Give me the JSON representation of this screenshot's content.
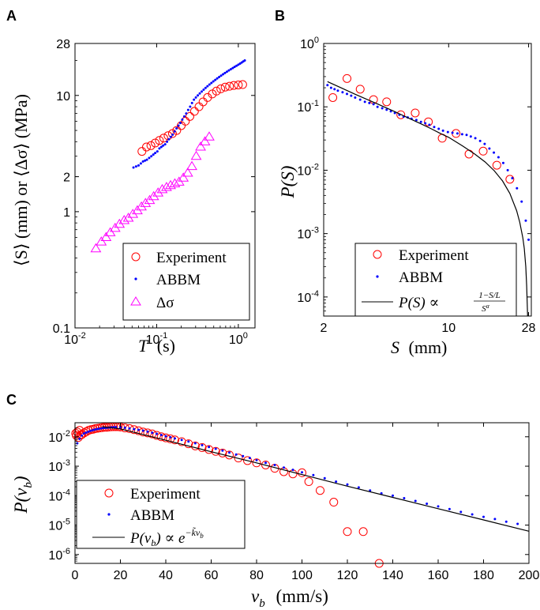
{
  "colors": {
    "experiment": "#ff0000",
    "abbm": "#0000ff",
    "dsigma": "#ff00ff",
    "fit": "#000000",
    "axis": "#000000"
  },
  "chart_data": [
    {
      "panel": "A",
      "type": "scatter",
      "xscale": "log",
      "yscale": "log",
      "xlim": [
        0.01,
        1.6
      ],
      "ylim": [
        0.1,
        28
      ],
      "xticks": [
        {
          "value": 0.01,
          "base": "10",
          "exp": "-2"
        },
        {
          "value": 0.1,
          "base": "10",
          "exp": "-1"
        },
        {
          "value": 1,
          "base": "10",
          "exp": "0"
        }
      ],
      "yticks": [
        {
          "value": 0.1,
          "label": "0.1"
        },
        {
          "value": 1,
          "label": "1"
        },
        {
          "value": 2,
          "label": "2"
        },
        {
          "value": 10,
          "label": "10"
        },
        {
          "value": 28,
          "label": "28"
        }
      ],
      "xlabel": "T (s)",
      "ylabel": "⟨S⟩ (mm) or ⟨Δσ⟩ (MPa)",
      "legend_position": "bottom-right",
      "series": [
        {
          "name": "Experiment",
          "marker": "circle",
          "x": [
            0.066,
            0.075,
            0.085,
            0.096,
            0.108,
            0.122,
            0.138,
            0.156,
            0.176,
            0.2,
            0.225,
            0.255,
            0.29,
            0.33,
            0.37,
            0.42,
            0.48,
            0.54,
            0.61,
            0.69,
            0.78,
            0.88,
            1.0,
            1.13
          ],
          "y": [
            3.3,
            3.6,
            3.7,
            3.9,
            4.1,
            4.3,
            4.5,
            4.7,
            5.0,
            5.5,
            6.0,
            6.6,
            7.3,
            8.0,
            8.8,
            9.6,
            10.3,
            10.9,
            11.4,
            11.8,
            12.0,
            12.2,
            12.3,
            12.4
          ]
        },
        {
          "name": "ABBM",
          "marker": "dot",
          "x": [
            0.052,
            0.056,
            0.06,
            0.064,
            0.068,
            0.072,
            0.076,
            0.081,
            0.086,
            0.091,
            0.096,
            0.102,
            0.108,
            0.114,
            0.12,
            0.127,
            0.134,
            0.141,
            0.149,
            0.157,
            0.166,
            0.175,
            0.185,
            0.195,
            0.206,
            0.218,
            0.23,
            0.243,
            0.257,
            0.271,
            0.286,
            0.302,
            0.319,
            0.337,
            0.356,
            0.376,
            0.397,
            0.419,
            0.443,
            0.468,
            0.494,
            0.522,
            0.551,
            0.582,
            0.615,
            0.65,
            0.686,
            0.725,
            0.766,
            0.809,
            0.855,
            0.9,
            0.95,
            1.0,
            1.05,
            1.1,
            1.15,
            1.2
          ],
          "y": [
            2.4,
            2.45,
            2.5,
            2.6,
            2.7,
            2.75,
            2.8,
            2.9,
            3.0,
            3.1,
            3.2,
            3.3,
            3.5,
            3.6,
            3.7,
            3.8,
            4.0,
            4.2,
            4.4,
            4.6,
            4.9,
            5.2,
            5.5,
            5.8,
            6.2,
            6.6,
            7.0,
            7.5,
            8.0,
            8.6,
            9.2,
            9.6,
            10.0,
            10.4,
            10.8,
            11.2,
            11.6,
            12.0,
            12.4,
            12.8,
            13.2,
            13.6,
            14.0,
            14.4,
            14.8,
            15.2,
            15.6,
            16.0,
            16.4,
            16.8,
            17.2,
            17.6,
            18.0,
            18.4,
            18.8,
            19.2,
            19.6,
            20.0
          ]
        },
        {
          "name": "Δσ",
          "marker": "triangle",
          "x": [
            0.018,
            0.021,
            0.024,
            0.027,
            0.031,
            0.035,
            0.04,
            0.045,
            0.051,
            0.058,
            0.065,
            0.073,
            0.082,
            0.092,
            0.104,
            0.117,
            0.132,
            0.148,
            0.167,
            0.188,
            0.212,
            0.24,
            0.27,
            0.305,
            0.345,
            0.39,
            0.44
          ],
          "y": [
            0.48,
            0.55,
            0.6,
            0.66,
            0.72,
            0.78,
            0.84,
            0.88,
            0.95,
            1.02,
            1.1,
            1.18,
            1.25,
            1.35,
            1.45,
            1.55,
            1.62,
            1.68,
            1.74,
            1.8,
            1.95,
            2.15,
            2.45,
            3.0,
            3.6,
            4.0,
            4.4
          ]
        }
      ]
    },
    {
      "panel": "B",
      "type": "scatter",
      "xscale": "log",
      "yscale": "log",
      "xlim": [
        2,
        29
      ],
      "ylim": [
        5e-05,
        1
      ],
      "xticks": [
        {
          "value": 2,
          "label": "2"
        },
        {
          "value": 10,
          "label": "10"
        },
        {
          "value": 28,
          "label": "28"
        }
      ],
      "yticks": [
        {
          "value": 0.0001,
          "base": "10",
          "exp": "-4"
        },
        {
          "value": 0.001,
          "base": "10",
          "exp": "-3"
        },
        {
          "value": 0.01,
          "base": "10",
          "exp": "-2"
        },
        {
          "value": 0.1,
          "base": "10",
          "exp": "-1"
        },
        {
          "value": 1,
          "base": "10",
          "exp": "0"
        }
      ],
      "xlabel": "S (mm)",
      "ylabel": "P(S)",
      "legend_position": "bottom-left",
      "series": [
        {
          "name": "Experiment",
          "marker": "circle",
          "x": [
            2.25,
            2.7,
            3.2,
            3.8,
            4.5,
            5.4,
            6.5,
            7.7,
            9.2,
            11.0,
            13.0,
            15.6,
            18.6,
            22.0
          ],
          "y": [
            0.14,
            0.28,
            0.19,
            0.13,
            0.12,
            0.075,
            0.08,
            0.058,
            0.032,
            0.038,
            0.018,
            0.02,
            0.012,
            0.0072
          ]
        },
        {
          "name": "ABBM",
          "marker": "dot",
          "x": [
            2.1,
            2.2,
            2.3,
            2.4,
            2.55,
            2.7,
            2.85,
            3.0,
            3.2,
            3.4,
            3.6,
            3.8,
            4.0,
            4.25,
            4.5,
            4.75,
            5.0,
            5.3,
            5.6,
            5.9,
            6.2,
            6.6,
            7.0,
            7.4,
            7.8,
            8.3,
            8.8,
            9.3,
            9.9,
            10.5,
            11.2,
            11.9,
            12.6,
            13.3,
            14.1,
            15.0,
            15.9,
            16.9,
            17.9,
            19.0,
            20.2,
            21.4,
            22.7,
            24.1,
            25.6,
            27.0,
            28.0
          ],
          "y": [
            0.22,
            0.2,
            0.19,
            0.18,
            0.17,
            0.16,
            0.15,
            0.14,
            0.13,
            0.12,
            0.115,
            0.11,
            0.1,
            0.095,
            0.09,
            0.085,
            0.08,
            0.075,
            0.07,
            0.068,
            0.065,
            0.062,
            0.058,
            0.055,
            0.052,
            0.048,
            0.045,
            0.042,
            0.04,
            0.039,
            0.038,
            0.037,
            0.036,
            0.034,
            0.032,
            0.029,
            0.026,
            0.022,
            0.019,
            0.016,
            0.013,
            0.01,
            0.0075,
            0.0052,
            0.0032,
            0.0016,
            0.0008
          ]
        },
        {
          "name": "P(S) ∝ (1−S/L)/S^α",
          "marker": "line",
          "x": [
            2.1,
            2.5,
            3.0,
            4.0,
            5.0,
            6.0,
            7.0,
            8.0,
            9.0,
            10.0,
            12.0,
            14.0,
            16.0,
            18.0,
            20.0,
            22.0,
            24.0,
            25.0,
            26.0,
            26.5,
            27.0,
            27.3,
            27.5,
            27.65
          ],
          "y": [
            0.25,
            0.2,
            0.158,
            0.111,
            0.084,
            0.066,
            0.054,
            0.045,
            0.038,
            0.033,
            0.024,
            0.018,
            0.0135,
            0.0098,
            0.0068,
            0.0043,
            0.0023,
            0.0015,
            0.00085,
            0.00058,
            0.0003,
            0.00015,
            8e-05,
            5e-05
          ]
        }
      ],
      "legend_fit_label": {
        "lhs": "P(S) ∝",
        "num": "1−S/L",
        "den_base": "S",
        "den_exp": "α"
      }
    },
    {
      "panel": "C",
      "type": "scatter",
      "xscale": "linear",
      "yscale": "log",
      "xlim": [
        0,
        200
      ],
      "ylim": [
        5e-07,
        0.03
      ],
      "xticks": [
        {
          "value": 0,
          "label": "0"
        },
        {
          "value": 20,
          "label": "20"
        },
        {
          "value": 40,
          "label": "40"
        },
        {
          "value": 60,
          "label": "60"
        },
        {
          "value": 80,
          "label": "80"
        },
        {
          "value": 100,
          "label": "100"
        },
        {
          "value": 120,
          "label": "120"
        },
        {
          "value": 140,
          "label": "140"
        },
        {
          "value": 160,
          "label": "160"
        },
        {
          "value": 180,
          "label": "180"
        },
        {
          "value": 200,
          "label": "200"
        }
      ],
      "yticks": [
        {
          "value": 1e-06,
          "base": "10",
          "exp": "-6"
        },
        {
          "value": 1e-05,
          "base": "10",
          "exp": "-5"
        },
        {
          "value": 0.0001,
          "base": "10",
          "exp": "-4"
        },
        {
          "value": 0.001,
          "base": "10",
          "exp": "-3"
        },
        {
          "value": 0.01,
          "base": "10",
          "exp": "-2"
        }
      ],
      "xlabel": "v_b (mm/s)",
      "ylabel": "P(v_b)",
      "legend_position": "bottom-left",
      "series": [
        {
          "name": "Experiment",
          "marker": "circle",
          "x": [
            0.3,
            0.6,
            1.0,
            1.5,
            2.0,
            2.5,
            3.0,
            4.0,
            5.0,
            6.0,
            7.0,
            8.0,
            9.0,
            10,
            11,
            12,
            13,
            14,
            15,
            16,
            17,
            18,
            19,
            20,
            22,
            24,
            26,
            28,
            30,
            32,
            34,
            36,
            38,
            40,
            42,
            44,
            47,
            50,
            53,
            56,
            59,
            62,
            65,
            68,
            72,
            76,
            80,
            84,
            88,
            92,
            96,
            100,
            103,
            108,
            114,
            120,
            127,
            134
          ],
          "y": [
            0.013,
            0.011,
            0.0145,
            0.0095,
            0.0165,
            0.0115,
            0.012,
            0.0135,
            0.015,
            0.0165,
            0.0175,
            0.018,
            0.019,
            0.0195,
            0.02,
            0.0205,
            0.021,
            0.021,
            0.0215,
            0.0218,
            0.022,
            0.022,
            0.022,
            0.0215,
            0.02,
            0.019,
            0.0175,
            0.016,
            0.0145,
            0.0135,
            0.0125,
            0.0112,
            0.01,
            0.0092,
            0.0085,
            0.0078,
            0.0068,
            0.0058,
            0.0049,
            0.0043,
            0.0037,
            0.0032,
            0.0028,
            0.0024,
            0.0019,
            0.00155,
            0.0013,
            0.0011,
            0.00085,
            0.00065,
            0.00055,
            0.0006,
            0.0003,
            0.00015,
            6e-05,
            6e-06,
            6e-06,
            5e-07
          ]
        },
        {
          "name": "ABBM",
          "marker": "dot",
          "x": [
            1,
            2,
            3,
            4,
            5,
            6,
            7,
            8,
            9,
            10,
            11,
            12,
            13,
            14,
            15,
            16,
            17,
            18,
            20,
            22,
            24,
            26,
            28,
            30,
            32,
            34,
            36,
            38,
            40,
            42,
            44,
            47,
            50,
            53,
            56,
            59,
            62,
            65,
            68,
            71,
            74,
            77,
            80,
            84,
            88,
            92,
            96,
            100,
            105,
            110,
            115,
            120,
            125,
            130,
            135,
            140,
            145,
            150,
            155,
            160,
            165,
            170,
            175,
            180,
            185,
            190,
            195
          ],
          "y": [
            0.006,
            0.0085,
            0.011,
            0.013,
            0.014,
            0.015,
            0.016,
            0.017,
            0.0178,
            0.0185,
            0.019,
            0.0195,
            0.02,
            0.0203,
            0.0205,
            0.0208,
            0.021,
            0.0212,
            0.021,
            0.0202,
            0.0192,
            0.0182,
            0.0172,
            0.0162,
            0.015,
            0.0138,
            0.0126,
            0.0115,
            0.0105,
            0.0096,
            0.0088,
            0.0078,
            0.0069,
            0.006,
            0.0052,
            0.0045,
            0.0039,
            0.0034,
            0.0029,
            0.0025,
            0.0022,
            0.0019,
            0.0016,
            0.0013,
            0.0011,
            0.0009,
            0.00075,
            0.00062,
            0.0005,
            0.00039,
            0.0003,
            0.00024,
            0.00019,
            0.00015,
            0.00012,
            0.0001,
            8.2e-05,
            6.6e-05,
            5.3e-05,
            4.3e-05,
            3.5e-05,
            2.8e-05,
            2.3e-05,
            1.9e-05,
            1.6e-05,
            1.3e-05,
            1.1e-05
          ]
        },
        {
          "name": "P(v_b) ∝ e^(−k̃ v_b)",
          "marker": "line",
          "x": [
            12,
            20,
            40,
            60,
            80,
            100,
            120,
            140,
            160,
            180,
            200
          ],
          "y": [
            0.022,
            0.0185,
            0.0076,
            0.0031,
            0.0013,
            0.00052,
            0.00021,
            8.7e-05,
            3.6e-05,
            1.5e-05,
            6.2e-06
          ]
        }
      ],
      "legend_fit_label": {
        "lhs": "P(v_b) ∝ e",
        "exp": "−k̃v_b"
      }
    }
  ],
  "panels": {
    "a": "A",
    "b": "B",
    "c": "C"
  },
  "legendA": {
    "exp": "Experiment",
    "abbm": "ABBM",
    "ds": "Δσ"
  },
  "legendB": {
    "exp": "Experiment",
    "abbm": "ABBM",
    "fit_lhs": "P(S) ∝",
    "fit_num": "1−S/L",
    "fit_den": "S",
    "fit_den_exp": "α"
  },
  "legendC": {
    "exp": "Experiment",
    "abbm": "ABBM",
    "fit_lhs": "P(v",
    "fit_lhs_sub": "b",
    "fit_mid": ") ∝ e",
    "fit_exp": "−k̃v",
    "fit_exp_sub": "b"
  },
  "axes": {
    "a_xlabel_var": "T",
    "a_xlabel_unit": "(s)",
    "a_ylabel": "⟨S⟩ (mm) or ⟨Δσ⟩ (MPa)",
    "b_xlabel_var": "S",
    "b_xlabel_unit": "(mm)",
    "b_ylabel": "P(S)",
    "c_xlabel_var": "v",
    "c_xlabel_sub": "b",
    "c_xlabel_unit": "(mm/s)",
    "c_ylabel_var": "P(v",
    "c_ylabel_sub": "b",
    "c_ylabel_end": ")"
  }
}
